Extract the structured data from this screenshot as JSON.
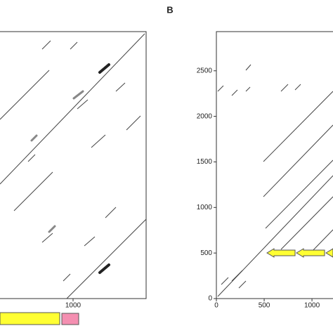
{
  "chart_data": [
    {
      "type": "dotplot",
      "xlim": [
        450,
        1550
      ],
      "xticks": [
        1000
      ]
    },
    {
      "type": "dotplot",
      "title": "B",
      "xlim": [
        0,
        1220
      ],
      "ylim": [
        0,
        2930
      ],
      "xticks": [
        0,
        500,
        1000
      ],
      "yticks": [
        0,
        500,
        1000,
        1500,
        2000,
        2500
      ]
    }
  ]
}
